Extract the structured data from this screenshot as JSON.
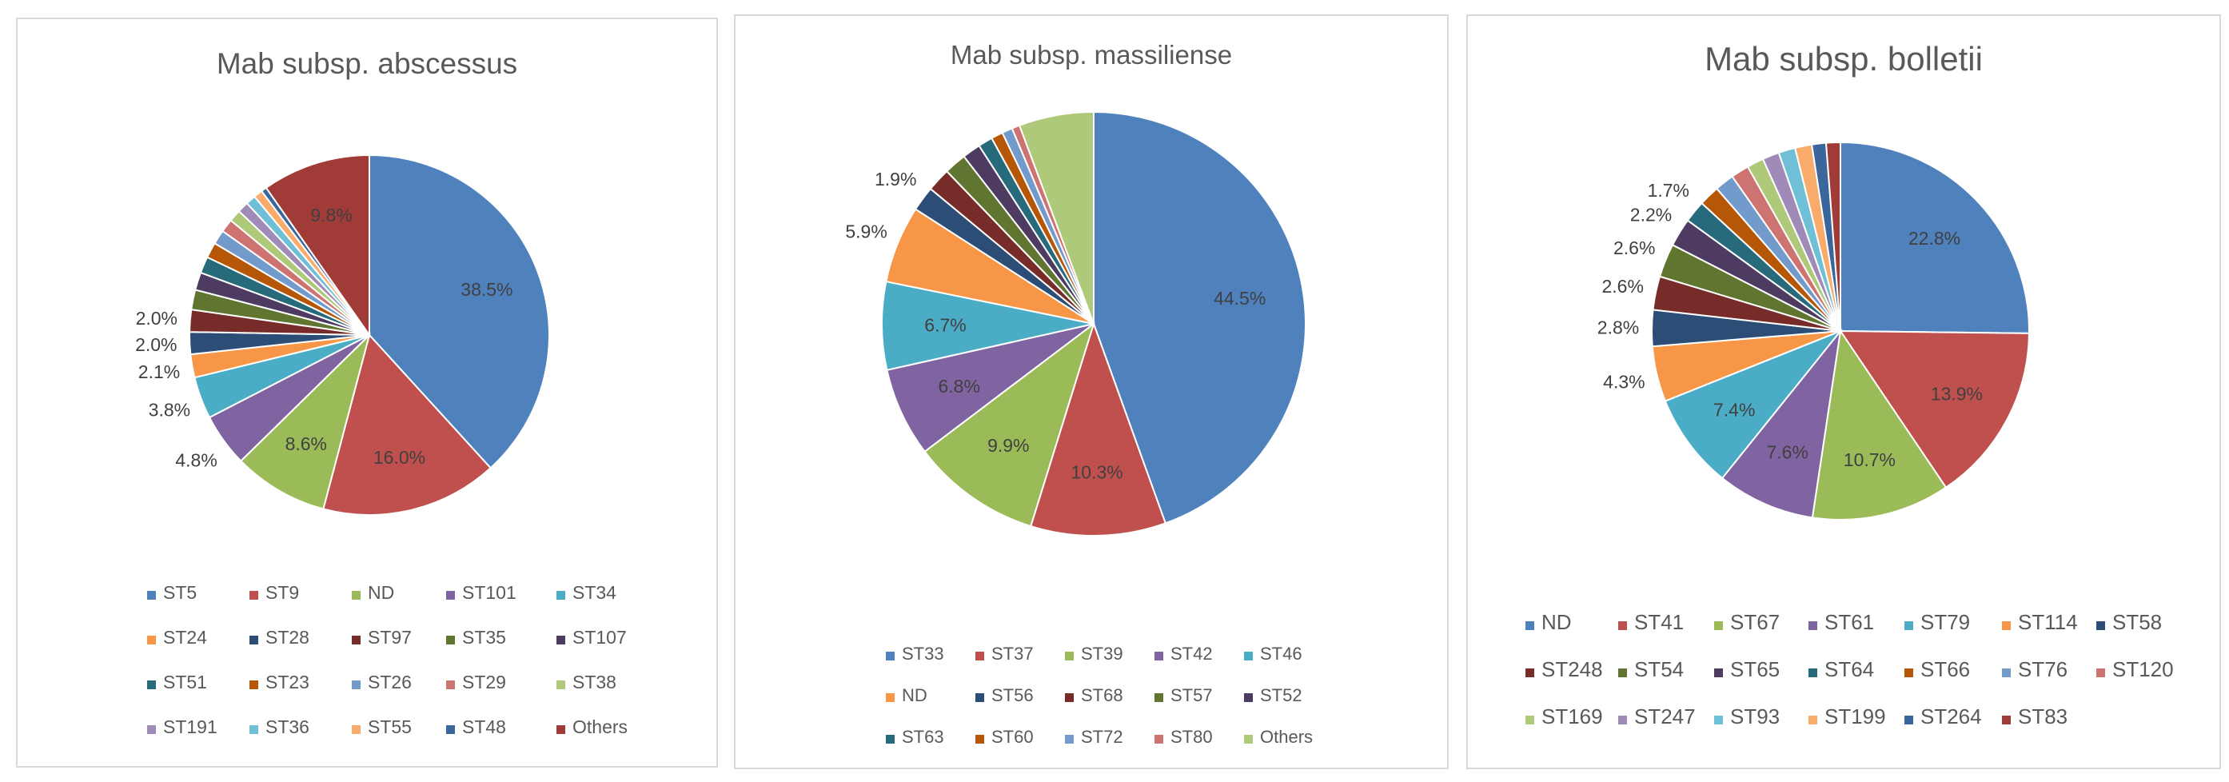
{
  "chart_data": [
    {
      "type": "pie",
      "title": "Mab subsp. abscessus",
      "categories": [
        "ST5",
        "ST9",
        "ND",
        "ST101",
        "ST34",
        "ST24",
        "ST28",
        "ST97",
        "ST35",
        "ST107",
        "ST51",
        "ST23",
        "ST26",
        "ST29",
        "ST38",
        "ST191",
        "ST36",
        "ST55",
        "ST48",
        "Others"
      ],
      "values": [
        38.5,
        16.0,
        8.6,
        4.8,
        3.8,
        2.1,
        2.0,
        2.0,
        1.8,
        1.6,
        1.5,
        1.4,
        1.3,
        1.2,
        1.1,
        1.0,
        0.9,
        0.8,
        0.5,
        9.8
      ],
      "data_labels": [
        "38.5%",
        "16.0%",
        "8.6%",
        "4.8%",
        "3.8%",
        "2.1%",
        "2.0%",
        "2.0%",
        "",
        "",
        "",
        "",
        "",
        "",
        "",
        "",
        "",
        "",
        "",
        "9.8%"
      ],
      "colors": [
        "#4F81BD",
        "#C0504D",
        "#9BBB59",
        "#8064A2",
        "#4BACC6",
        "#F79646",
        "#2C4D75",
        "#772C2A",
        "#5F7530",
        "#4D3B62",
        "#276A7C",
        "#B65708",
        "#729ACA",
        "#CD7371",
        "#AFC97A",
        "#A08AB8",
        "#6FC0D6",
        "#F9AB6B",
        "#3B669C",
        "#A03B37"
      ],
      "legend": "bottom"
    },
    {
      "type": "pie",
      "title": "Mab subsp. massiliense",
      "categories": [
        "ST33",
        "ST37",
        "ST39",
        "ST42",
        "ST46",
        "ND",
        "ST56",
        "ST68",
        "ST57",
        "ST52",
        "ST63",
        "ST60",
        "ST72",
        "ST80",
        "Others"
      ],
      "values": [
        44.5,
        10.3,
        9.9,
        6.8,
        6.7,
        5.9,
        1.9,
        1.8,
        1.7,
        1.4,
        1.1,
        0.9,
        0.8,
        0.6,
        5.7
      ],
      "data_labels": [
        "44.5%",
        "10.3%",
        "9.9%",
        "6.8%",
        "6.7%",
        "5.9%",
        "1.9%",
        "",
        "",
        "",
        "",
        "",
        "",
        "",
        ""
      ],
      "colors": [
        "#4F81BD",
        "#C0504D",
        "#9BBB59",
        "#8064A2",
        "#4BACC6",
        "#F79646",
        "#2C4D75",
        "#772C2A",
        "#5F7530",
        "#4D3B62",
        "#276A7C",
        "#B65708",
        "#729ACA",
        "#CD7371",
        "#AFC97A"
      ],
      "legend": "bottom"
    },
    {
      "type": "pie",
      "title": "Mab subsp. bolletii",
      "categories": [
        "ND",
        "ST41",
        "ST67",
        "ST61",
        "ST79",
        "ST114",
        "ST58",
        "ST248",
        "ST54",
        "ST65",
        "ST64",
        "ST66",
        "ST76",
        "ST120",
        "ST169",
        "ST247",
        "ST93",
        "ST199",
        "ST264",
        "ST83"
      ],
      "values": [
        22.8,
        13.9,
        10.7,
        7.6,
        7.4,
        4.3,
        2.8,
        2.6,
        2.6,
        2.2,
        1.7,
        1.6,
        1.5,
        1.4,
        1.3,
        1.3,
        1.3,
        1.3,
        1.1,
        1.1
      ],
      "data_labels": [
        "22.8%",
        "13.9%",
        "10.7%",
        "7.6%",
        "7.4%",
        "4.3%",
        "2.8%",
        "2.6%",
        "2.6%",
        "2.2%",
        "1.7%",
        "",
        "",
        "",
        "",
        "",
        "",
        "",
        "",
        ""
      ],
      "colors": [
        "#4F81BD",
        "#C0504D",
        "#9BBB59",
        "#8064A2",
        "#4BACC6",
        "#F79646",
        "#2C4D75",
        "#772C2A",
        "#5F7530",
        "#4D3B62",
        "#276A7C",
        "#B65708",
        "#729ACA",
        "#CD7371",
        "#AFC97A",
        "#A08AB8",
        "#6FC0D6",
        "#F9AB6B",
        "#3B669C",
        "#A03B37"
      ],
      "legend": "bottom"
    }
  ]
}
